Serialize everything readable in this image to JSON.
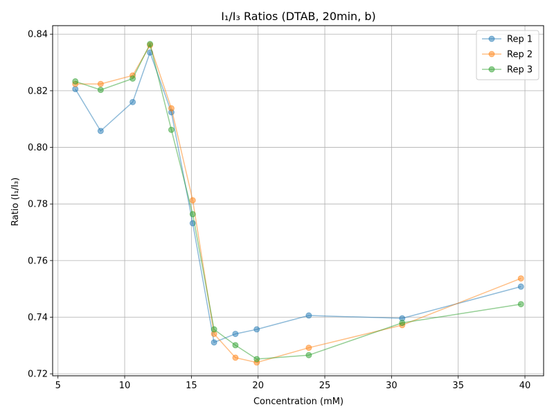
{
  "chart_data": {
    "type": "line",
    "title": "I₁/I₃ Ratios (DTAB, 20min, b)",
    "xlabel": "Concentration (mM)",
    "ylabel": "Ratio (I₁/I₃)",
    "xlim": [
      4.6,
      41.4
    ],
    "ylim": [
      0.7193,
      0.843
    ],
    "xticks": [
      5,
      10,
      15,
      20,
      25,
      30,
      35,
      40
    ],
    "yticks": [
      0.72,
      0.74,
      0.76,
      0.78,
      0.8,
      0.82,
      0.84
    ],
    "xtick_labels": [
      "5",
      "10",
      "15",
      "20",
      "25",
      "30",
      "35",
      "40"
    ],
    "ytick_labels": [
      "0.72",
      "0.74",
      "0.76",
      "0.78",
      "0.80",
      "0.82",
      "0.84"
    ],
    "grid": true,
    "legend_position": "top-right",
    "series": [
      {
        "name": "Rep 1",
        "color": "#1f77b4",
        "x": [
          6.3,
          8.2,
          10.6,
          11.9,
          13.5,
          15.1,
          16.7,
          18.3,
          19.9,
          23.8,
          30.8,
          39.7
        ],
        "y": [
          0.8206,
          0.8058,
          0.816,
          0.8335,
          0.8124,
          0.7732,
          0.7311,
          0.7341,
          0.7357,
          0.7406,
          0.7396,
          0.7508
        ]
      },
      {
        "name": "Rep 2",
        "color": "#ff7f0e",
        "x": [
          6.3,
          8.2,
          10.6,
          11.9,
          13.5,
          15.1,
          16.7,
          18.3,
          19.9,
          23.8,
          30.8,
          39.7
        ],
        "y": [
          0.8224,
          0.8224,
          0.8254,
          0.8361,
          0.8138,
          0.7813,
          0.7341,
          0.7257,
          0.724,
          0.7292,
          0.7372,
          0.7537
        ]
      },
      {
        "name": "Rep 3",
        "color": "#2ca02c",
        "x": [
          6.3,
          8.2,
          10.6,
          11.9,
          13.5,
          15.1,
          16.7,
          18.3,
          19.9,
          23.8,
          30.8,
          39.7
        ],
        "y": [
          0.8233,
          0.8203,
          0.8243,
          0.8365,
          0.8062,
          0.7764,
          0.7357,
          0.7301,
          0.7252,
          0.7266,
          0.738,
          0.7446
        ]
      }
    ]
  }
}
